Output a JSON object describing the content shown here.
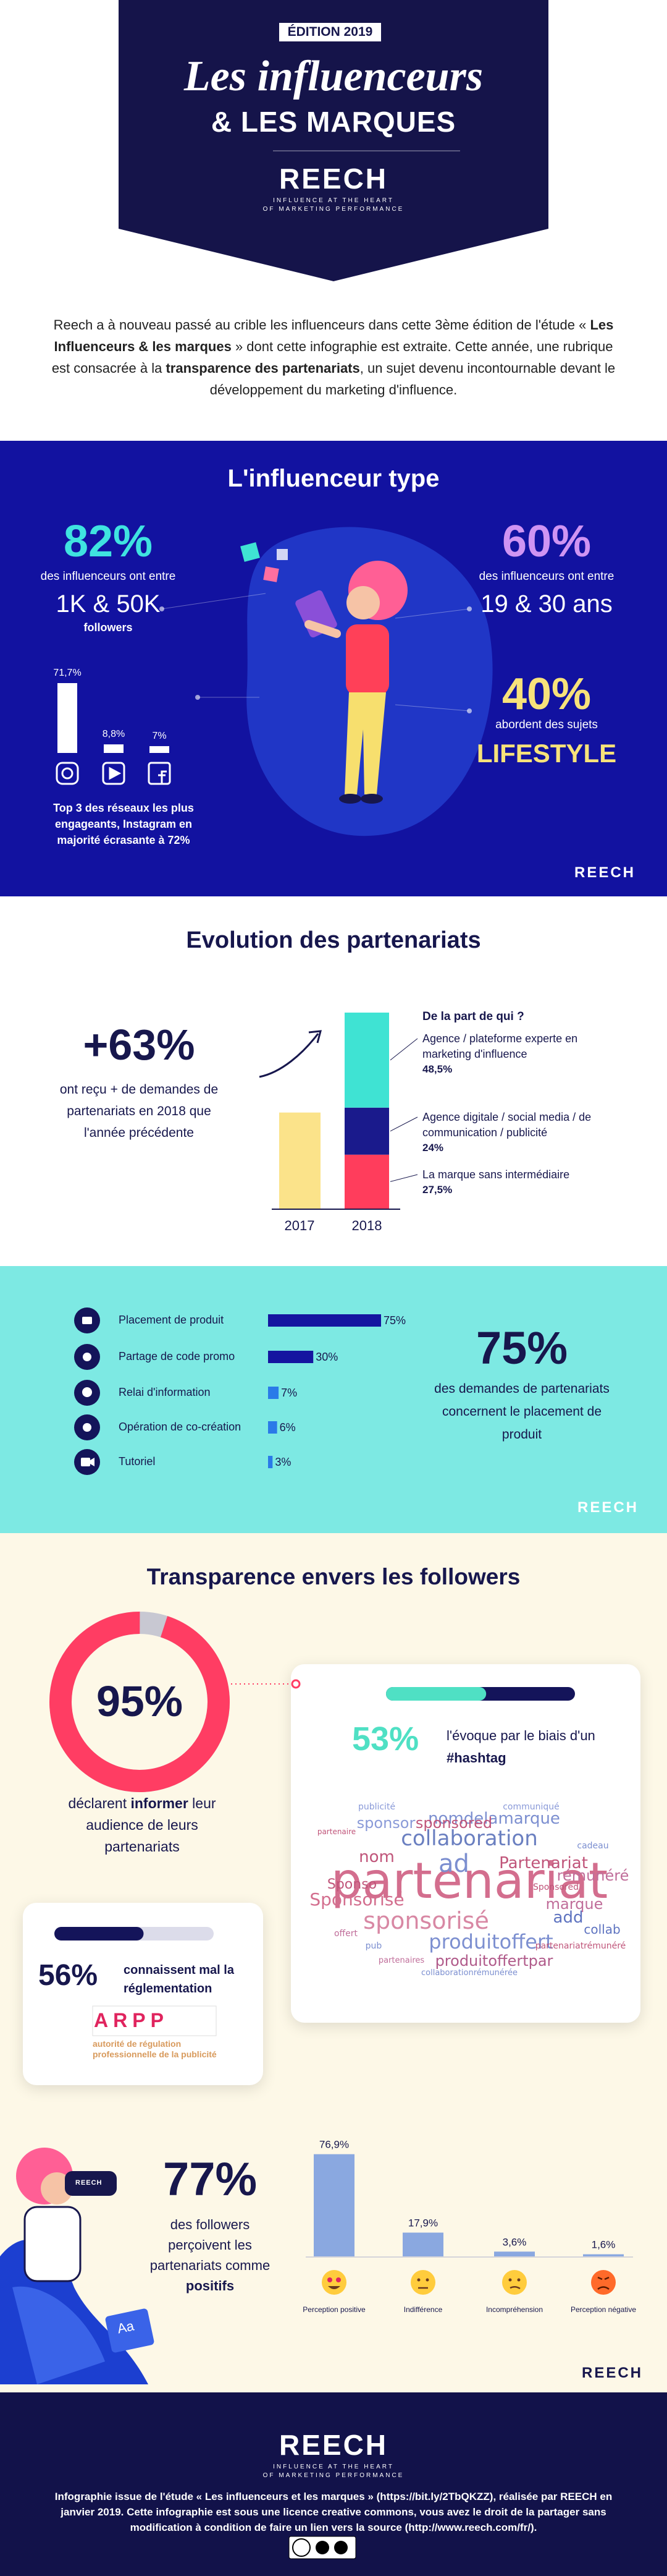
{
  "header": {
    "edition": "ÉDITION 2019",
    "title_line1": "Les influenceurs",
    "title_line2": "& LES MARQUES",
    "brand": "REECH",
    "tagline_line1": "INFLUENCE AT THE HEART",
    "tagline_line2": "OF MARKETING PERFORMANCE"
  },
  "intro": [
    "Reech a à nouveau passé au crible les influenceurs dans cette 3ème édition de l'étude « ",
    "Les Influenceurs & les marques",
    " » dont cette infographie est extraite. Cette année, une rubrique est consacrée à la ",
    "transparence des partenariats",
    ", un sujet devenu incontournable devant le développement du marketing d'influence."
  ],
  "influencer_type": {
    "title": "L'influenceur type",
    "followers": {
      "stat": "82%",
      "text": "des influenceurs ont entre",
      "range": "1K & 50K",
      "unit": "followers"
    },
    "age": {
      "stat": "60%",
      "text": "des influenceurs ont entre",
      "range": "19 & 30 ans"
    },
    "topics": {
      "stat": "40%",
      "text": "abordent des sujets",
      "topic": "LIFESTYLE"
    },
    "networks": [
      {
        "value": 71.7,
        "label": "71,7%"
      },
      {
        "value": 8.8,
        "label": "8,8%"
      },
      {
        "value": 7,
        "label": "7%"
      }
    ],
    "networks_note": [
      "Top 3 des réseaux les plus engageants, ",
      "Instagram",
      " en majorité écrasante à ",
      "72%"
    ],
    "brand": "REECH"
  },
  "evolution": {
    "title": "Evolution des partenariats",
    "growth": "+63%",
    "growth_text": "ont reçu + de demandes de partenariats en 2018 que l'année précédente",
    "bar_2017": {
      "label": "2017",
      "value": 49,
      "color": "#fbe38a"
    },
    "bar_2018": {
      "label": "2018",
      "segments": [
        {
          "name": "Agence / plateforme experte en marketing d'influence",
          "value": 48.5,
          "label": "48,5%",
          "color": "#3fe3d3"
        },
        {
          "name": "Agence digitale / social media / de communication / publicité",
          "value": 24,
          "label": "24%",
          "color": "#1a1a8c"
        },
        {
          "name": "La marque sans intermédiaire",
          "value": 27.5,
          "label": "27,5%",
          "color": "#ff3d5c"
        }
      ]
    },
    "legend_title": "De la part de qui ?"
  },
  "formats": {
    "items": [
      {
        "name": "Placement de produit",
        "value": 75,
        "label": "75%"
      },
      {
        "name": "Partage de code promo",
        "value": 30,
        "label": "30%"
      },
      {
        "name": "Relai d'information",
        "value": 7,
        "label": "7%"
      },
      {
        "name": "Opération de co-création",
        "value": 6,
        "label": "6%"
      },
      {
        "name": "Tutoriel",
        "value": 3,
        "label": "3%"
      }
    ],
    "stat": "75%",
    "stat_text": "des demandes de partenariats concernent le placement de produit",
    "brand": "REECH"
  },
  "transparency": {
    "title": "Transparence envers les followers",
    "inform": {
      "value": 95,
      "label": "95%",
      "text": [
        "déclarent ",
        "informer",
        " leur audience de leurs partenariats"
      ]
    },
    "hashtag": {
      "value": 53,
      "label": "53%",
      "text": [
        "l'évoque par le biais d'un ",
        "#hashtag"
      ],
      "words": [
        "partenariat",
        "collaboration",
        "sponsorisé",
        "produitoffert",
        "Sponsorisé",
        "ad",
        "nomdelamarque",
        "sponsor",
        "sponsored",
        "Partenariat",
        "add",
        "marque",
        "collab",
        "rémunéré",
        "Sponso",
        "nom",
        "produitoffertpar",
        "partenariatrémunéré",
        "publicité",
        "partenaire",
        "communiqué",
        "cadeau",
        "offert",
        "pub",
        "Sponsored",
        "collaborationrémunérée",
        "partenaires"
      ]
    },
    "regulation": {
      "value": 56,
      "label": "56%",
      "text": "connaissent mal la réglementation",
      "logo": "ARPP",
      "logo_text": "autorité de régulation professionnelle de la publicité"
    },
    "perception": {
      "stat": "77%",
      "text": [
        "des followers perçoivent les partenariats comme ",
        "positifs"
      ],
      "badge": "REECH",
      "illustration_text": "Aa",
      "items": [
        {
          "name": "Perception positive",
          "value": 76.9,
          "label": "76,9%"
        },
        {
          "name": "Indifférence",
          "value": 17.9,
          "label": "17,9%"
        },
        {
          "name": "Incompréhension",
          "value": 3.6,
          "label": "3,6%"
        },
        {
          "name": "Perception négative",
          "value": 1.6,
          "label": "1,6%"
        }
      ]
    },
    "brand": "REECH"
  },
  "footer": {
    "brand": "REECH",
    "tagline_line1": "INFLUENCE AT THE HEART",
    "tagline_line2": "OF MARKETING PERFORMANCE",
    "text": "Infographie issue de l'étude « Les influenceurs et les marques » (https://bit.ly/2TbQKZZ), réalisée par REECH en janvier 2019. Cette infographie est sous une licence creative commons, vous avez le droit de la partager sans modification à condition de faire un lien vers la source (http://www.reech.com/fr/)."
  }
}
